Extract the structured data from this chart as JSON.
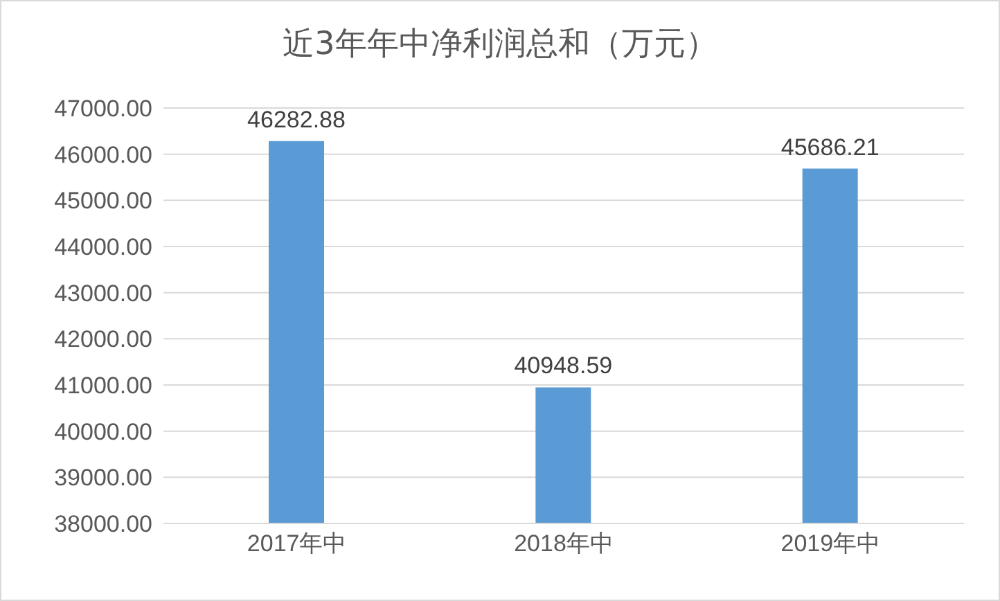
{
  "chart_data": {
    "type": "bar",
    "title": "近3年年中净利润总和（万元）",
    "categories": [
      "2017年中",
      "2018年中",
      "2019年中"
    ],
    "values": [
      46282.88,
      40948.59,
      45686.21
    ],
    "color": "#5b9bd5",
    "ylim": [
      38000,
      47000
    ],
    "yticks": [
      {
        "value": 38000,
        "label": "38000.00"
      },
      {
        "value": 39000,
        "label": "39000.00"
      },
      {
        "value": 40000,
        "label": "40000.00"
      },
      {
        "value": 41000,
        "label": "41000.00"
      },
      {
        "value": 42000,
        "label": "42000.00"
      },
      {
        "value": 43000,
        "label": "43000.00"
      },
      {
        "value": 44000,
        "label": "44000.00"
      },
      {
        "value": 45000,
        "label": "45000.00"
      },
      {
        "value": 46000,
        "label": "46000.00"
      },
      {
        "value": 47000,
        "label": "47000.00"
      }
    ],
    "grid": "y",
    "data_labels": true
  }
}
